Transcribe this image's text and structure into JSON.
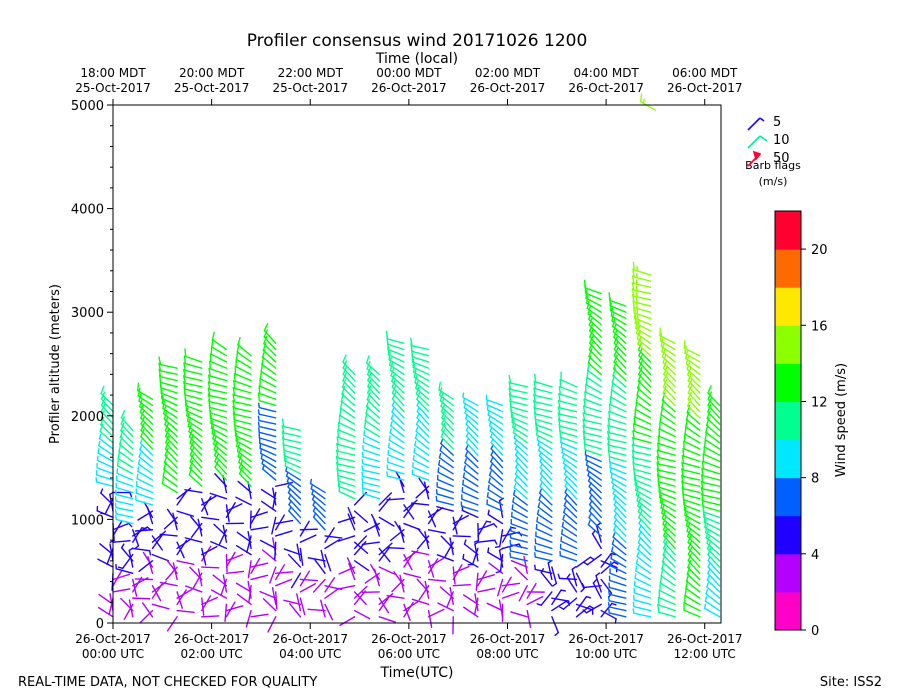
{
  "chart_data": {
    "type": "wind-barb",
    "title": "Profiler consensus wind 20171026 1200",
    "top_axis_label": "Time (local)",
    "xlabel": "Time(UTC)",
    "ylabel": "Profiler altitude (meters)",
    "ylim": [
      0,
      5000
    ],
    "y_ticks": [
      0,
      1000,
      2000,
      3000,
      4000,
      5000
    ],
    "x_range_utc_hours": [
      0,
      12.33
    ],
    "x_ticks_utc": [
      {
        "hour": 0,
        "line1": "26-Oct-2017",
        "line2": "00:00 UTC"
      },
      {
        "hour": 2,
        "line1": "26-Oct-2017",
        "line2": "02:00 UTC"
      },
      {
        "hour": 4,
        "line1": "26-Oct-2017",
        "line2": "04:00 UTC"
      },
      {
        "hour": 6,
        "line1": "26-Oct-2017",
        "line2": "06:00 UTC"
      },
      {
        "hour": 8,
        "line1": "26-Oct-2017",
        "line2": "08:00 UTC"
      },
      {
        "hour": 10,
        "line1": "26-Oct-2017",
        "line2": "10:00 UTC"
      },
      {
        "hour": 12,
        "line1": "26-Oct-2017",
        "line2": "12:00 UTC"
      }
    ],
    "x_ticks_local": [
      {
        "hour": 0,
        "line1": "18:00 MDT",
        "line2": "25-Oct-2017"
      },
      {
        "hour": 2,
        "line1": "20:00 MDT",
        "line2": "25-Oct-2017"
      },
      {
        "hour": 4,
        "line1": "22:00 MDT",
        "line2": "25-Oct-2017"
      },
      {
        "hour": 6,
        "line1": "00:00 MDT",
        "line2": "26-Oct-2017"
      },
      {
        "hour": 8,
        "line1": "02:00 MDT",
        "line2": "26-Oct-2017"
      },
      {
        "hour": 10,
        "line1": "04:00 MDT",
        "line2": "26-Oct-2017"
      },
      {
        "hour": 12,
        "line1": "06:00 MDT",
        "line2": "26-Oct-2017"
      }
    ],
    "barb_legend": {
      "title": "Barb flags",
      "units": "(m/s)",
      "entries": [
        {
          "value": 5,
          "label": "5",
          "color": "#1a00ff"
        },
        {
          "value": 10,
          "label": "10",
          "color": "#00f0a0"
        },
        {
          "value": 50,
          "label": "50",
          "color": "#ff0030"
        }
      ]
    },
    "colorbar": {
      "label": "Wind speed (m/s)",
      "range": [
        0,
        22
      ],
      "ticks": [
        {
          "value": 0,
          "label": "0"
        },
        {
          "value": 4,
          "label": "4"
        },
        {
          "value": 8,
          "label": "8"
        },
        {
          "value": 12,
          "label": "12"
        },
        {
          "value": 16,
          "label": "16"
        },
        {
          "value": 20,
          "label": "20"
        }
      ],
      "colors": [
        "#ff00c8",
        "#b400ff",
        "#2000ff",
        "#0060ff",
        "#00e8ff",
        "#00ff90",
        "#00ff00",
        "#8cff00",
        "#ffe800",
        "#ff6a00",
        "#ff0030"
      ]
    },
    "profile_times_utc": [
      0,
      0.4,
      0.8,
      1.3,
      1.8,
      2.3,
      2.8,
      3.3,
      3.8,
      4.3,
      4.9,
      5.4,
      5.9,
      6.4,
      6.9,
      7.4,
      7.9,
      8.4,
      8.9,
      9.4,
      9.9,
      10.4,
      10.9,
      11.4,
      11.9,
      12.3
    ],
    "profiles": [
      {
        "t": 0.0,
        "top": 2150,
        "speeds": [
          3,
          4,
          5,
          9,
          10
        ]
      },
      {
        "t": 0.4,
        "top": 1900,
        "speeds": [
          3,
          5,
          9,
          10
        ]
      },
      {
        "t": 0.8,
        "top": 2200,
        "speeds": [
          3,
          4,
          9,
          12
        ]
      },
      {
        "t": 1.3,
        "top": 2500,
        "speeds": [
          3,
          4,
          12,
          13
        ]
      },
      {
        "t": 1.8,
        "top": 2550,
        "speeds": [
          3,
          4,
          12,
          13
        ]
      },
      {
        "t": 2.3,
        "top": 2650,
        "speeds": [
          3,
          4,
          12,
          13
        ]
      },
      {
        "t": 2.8,
        "top": 2600,
        "speeds": [
          3,
          4,
          13,
          13
        ]
      },
      {
        "t": 3.3,
        "top": 2750,
        "speeds": [
          3,
          4,
          6,
          13
        ]
      },
      {
        "t": 3.8,
        "top": 1900,
        "speeds": [
          3,
          4,
          6,
          11
        ]
      },
      {
        "t": 4.3,
        "top": 1300,
        "speeds": [
          3,
          4,
          6
        ]
      },
      {
        "t": 4.9,
        "top": 2400,
        "speeds": [
          3,
          4,
          10,
          11
        ]
      },
      {
        "t": 5.4,
        "top": 2400,
        "speeds": [
          3,
          4,
          8,
          11
        ]
      },
      {
        "t": 5.9,
        "top": 2700,
        "speeds": [
          3,
          4,
          8,
          11
        ]
      },
      {
        "t": 6.4,
        "top": 2650,
        "speeds": [
          3,
          4,
          8,
          11
        ]
      },
      {
        "t": 6.9,
        "top": 2200,
        "speeds": [
          3,
          4,
          6,
          10
        ]
      },
      {
        "t": 7.4,
        "top": 2100,
        "speeds": [
          3,
          5,
          6,
          9
        ]
      },
      {
        "t": 7.9,
        "top": 2150,
        "speeds": [
          3,
          5,
          6,
          9
        ]
      },
      {
        "t": 8.4,
        "top": 2300,
        "speeds": [
          3,
          6,
          8,
          10
        ]
      },
      {
        "t": 8.9,
        "top": 2300,
        "speeds": [
          5,
          6,
          9,
          10
        ]
      },
      {
        "t": 9.4,
        "top": 2300,
        "speeds": [
          5,
          6,
          9,
          10
        ]
      },
      {
        "t": 9.9,
        "top": 3200,
        "speeds": [
          5,
          6,
          10,
          12
        ]
      },
      {
        "t": 10.4,
        "top": 3100,
        "speeds": [
          6,
          9,
          11,
          13
        ]
      },
      {
        "t": 10.9,
        "top": 3400,
        "speeds": [
          9,
          11,
          13,
          15
        ]
      },
      {
        "t": 11.4,
        "top": 2750,
        "speeds": [
          11,
          12,
          13,
          14
        ]
      },
      {
        "t": 11.9,
        "top": 2600,
        "speeds": [
          12,
          13,
          13,
          14
        ]
      },
      {
        "t": 12.3,
        "top": 2150,
        "speeds": [
          9,
          11,
          12,
          13
        ]
      }
    ],
    "isolated_barbs": [
      {
        "t": 11.0,
        "alt": 4950,
        "speed": 15
      }
    ]
  },
  "footer": {
    "left": "REAL-TIME DATA, NOT CHECKED FOR QUALITY",
    "right": "Site: ISS2"
  }
}
